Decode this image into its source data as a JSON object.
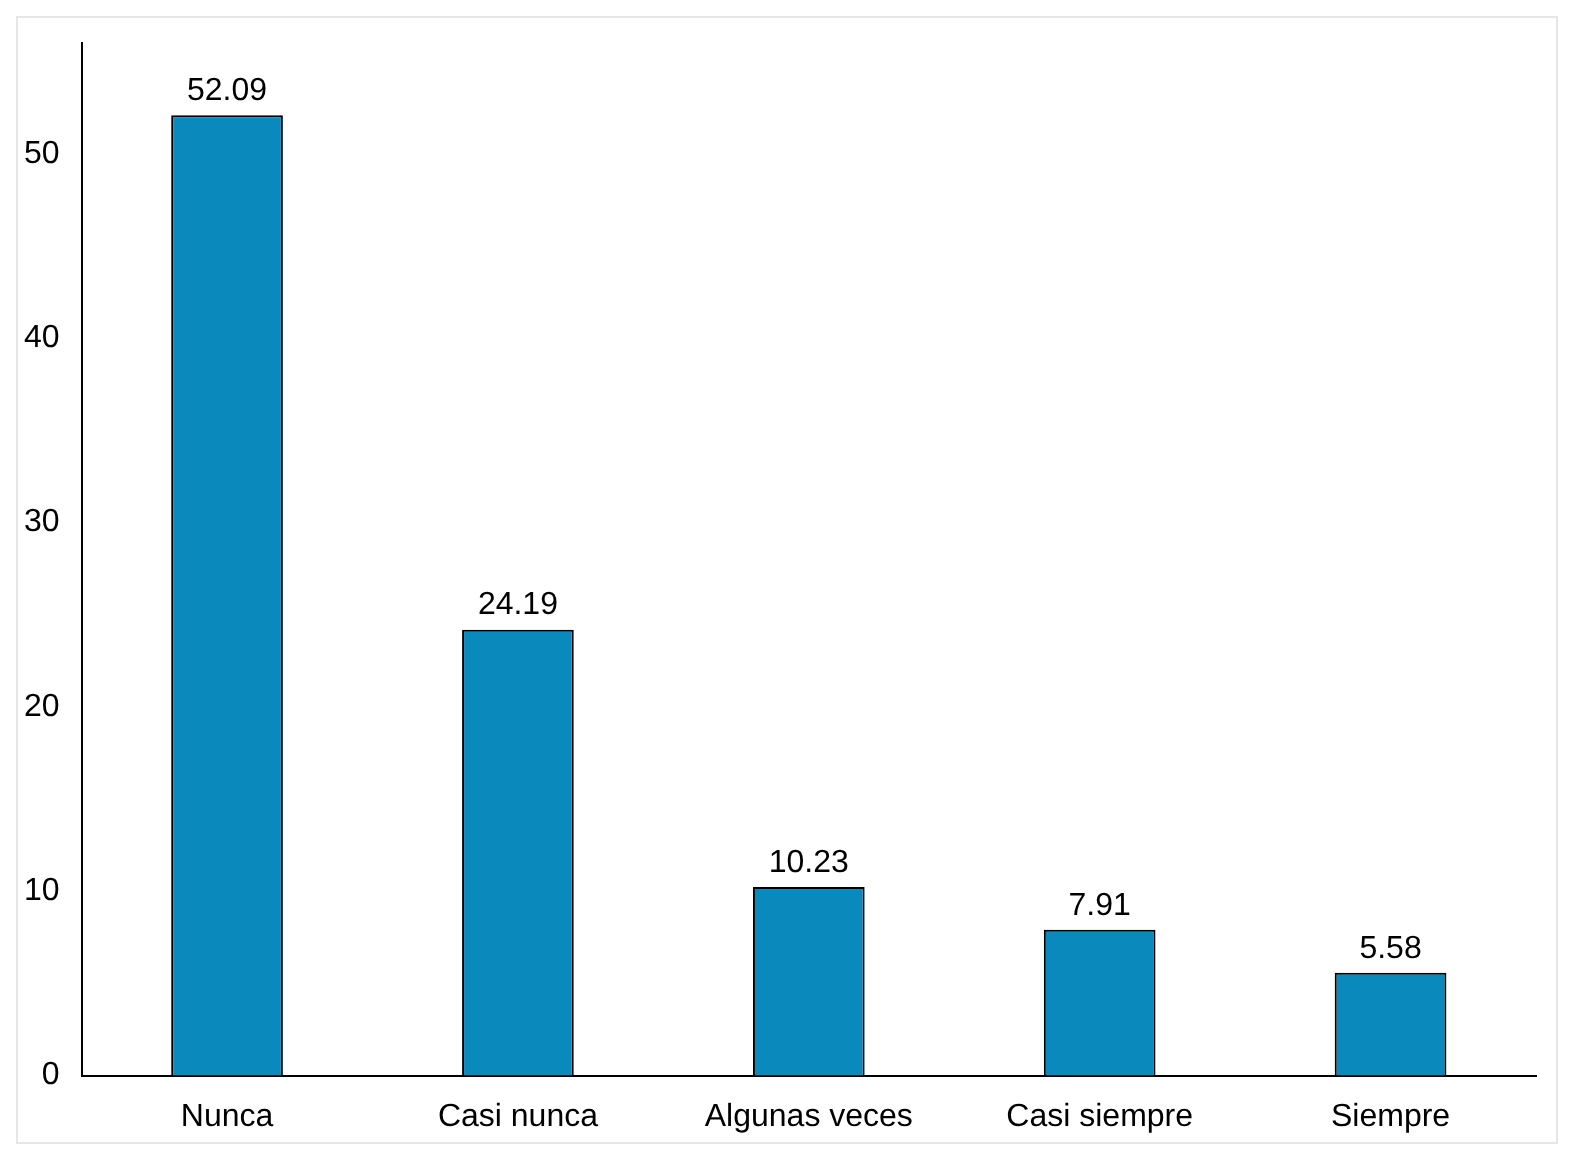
{
  "chart_data": {
    "type": "bar",
    "categories": [
      "Nunca",
      "Casi nunca",
      "Algunas veces",
      "Casi siempre",
      "Siempre"
    ],
    "values": [
      52.09,
      24.19,
      10.23,
      7.91,
      5.58
    ],
    "color": "#0a89bd",
    "ylim": [
      0,
      56
    ],
    "yticks": [
      0,
      10,
      20,
      30,
      40,
      50
    ],
    "grid": false,
    "legend": false,
    "data_labels": true
  }
}
